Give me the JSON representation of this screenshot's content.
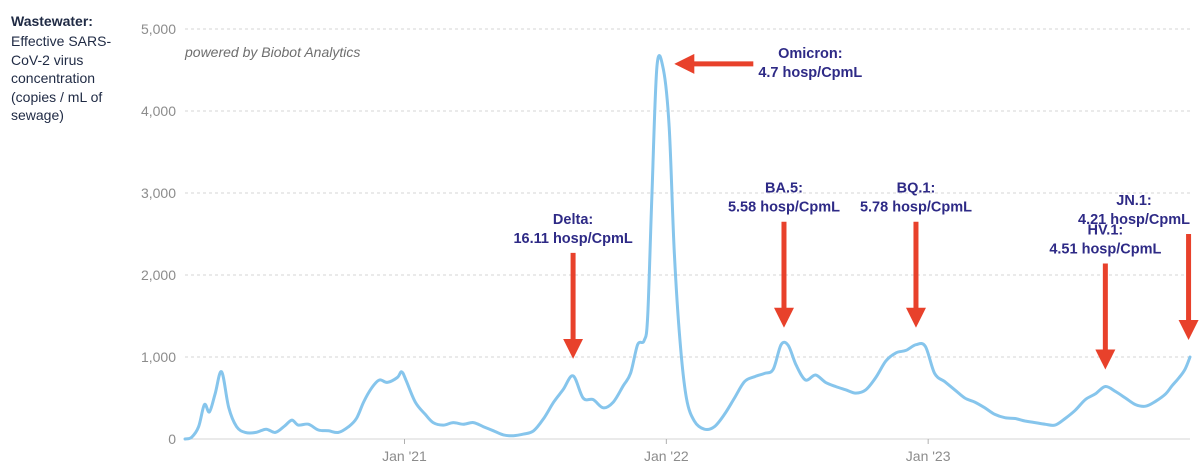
{
  "ylabel": {
    "title": "Wastewater:",
    "subtitle": "Effective SARS-CoV-2 virus concentration (copies / mL of sewage)"
  },
  "credit": "powered by Biobot Analytics",
  "colors": {
    "line": "#86c5ec",
    "arrow": "#e8412b",
    "annotation": "#2e2a86",
    "grid": "#d6d6d6"
  },
  "chart_data": {
    "type": "line",
    "ylim": [
      0,
      5000
    ],
    "xlim": [
      "2020-03-01",
      "2024-01-01"
    ],
    "grid": true,
    "yticks": [
      0,
      1000,
      2000,
      3000,
      4000,
      5000
    ],
    "ytick_labels": [
      "0",
      "1,000",
      "2,000",
      "3,000",
      "4,000",
      "5,000"
    ],
    "xticks": [
      {
        "date": "2021-01-01",
        "label": "Jan '21"
      },
      {
        "date": "2022-01-01",
        "label": "Jan '22"
      },
      {
        "date": "2023-01-01",
        "label": "Jan '23"
      }
    ],
    "series": [
      {
        "points": [
          [
            "2020-03-01",
            0
          ],
          [
            "2020-03-10",
            20
          ],
          [
            "2020-03-20",
            150
          ],
          [
            "2020-03-28",
            420
          ],
          [
            "2020-04-04",
            330
          ],
          [
            "2020-04-12",
            550
          ],
          [
            "2020-04-21",
            820
          ],
          [
            "2020-05-01",
            380
          ],
          [
            "2020-05-12",
            150
          ],
          [
            "2020-05-24",
            80
          ],
          [
            "2020-06-08",
            80
          ],
          [
            "2020-06-22",
            120
          ],
          [
            "2020-07-05",
            80
          ],
          [
            "2020-07-18",
            160
          ],
          [
            "2020-07-28",
            230
          ],
          [
            "2020-08-06",
            170
          ],
          [
            "2020-08-20",
            180
          ],
          [
            "2020-09-03",
            110
          ],
          [
            "2020-09-17",
            100
          ],
          [
            "2020-10-01",
            80
          ],
          [
            "2020-10-15",
            150
          ],
          [
            "2020-10-26",
            250
          ],
          [
            "2020-11-05",
            450
          ],
          [
            "2020-11-16",
            620
          ],
          [
            "2020-11-27",
            720
          ],
          [
            "2020-12-08",
            690
          ],
          [
            "2020-12-22",
            750
          ],
          [
            "2020-12-28",
            820
          ],
          [
            "2021-01-03",
            720
          ],
          [
            "2021-01-16",
            450
          ],
          [
            "2021-01-30",
            300
          ],
          [
            "2021-02-10",
            200
          ],
          [
            "2021-02-24",
            170
          ],
          [
            "2021-03-10",
            200
          ],
          [
            "2021-03-24",
            180
          ],
          [
            "2021-04-07",
            200
          ],
          [
            "2021-04-21",
            150
          ],
          [
            "2021-05-05",
            100
          ],
          [
            "2021-05-19",
            50
          ],
          [
            "2021-06-02",
            40
          ],
          [
            "2021-06-16",
            60
          ],
          [
            "2021-06-30",
            100
          ],
          [
            "2021-07-14",
            250
          ],
          [
            "2021-07-28",
            450
          ],
          [
            "2021-08-10",
            600
          ],
          [
            "2021-08-24",
            770
          ],
          [
            "2021-09-07",
            500
          ],
          [
            "2021-09-21",
            480
          ],
          [
            "2021-10-05",
            380
          ],
          [
            "2021-10-19",
            450
          ],
          [
            "2021-11-02",
            650
          ],
          [
            "2021-11-12",
            800
          ],
          [
            "2021-11-22",
            1150
          ],
          [
            "2021-12-01",
            1200
          ],
          [
            "2021-12-06",
            1500
          ],
          [
            "2021-12-12",
            3000
          ],
          [
            "2021-12-19",
            4550
          ],
          [
            "2021-12-28",
            4500
          ],
          [
            "2022-01-05",
            3800
          ],
          [
            "2022-01-12",
            2300
          ],
          [
            "2022-01-20",
            1200
          ],
          [
            "2022-01-29",
            500
          ],
          [
            "2022-02-09",
            220
          ],
          [
            "2022-02-23",
            120
          ],
          [
            "2022-03-09",
            150
          ],
          [
            "2022-03-23",
            300
          ],
          [
            "2022-04-06",
            500
          ],
          [
            "2022-04-20",
            700
          ],
          [
            "2022-05-04",
            760
          ],
          [
            "2022-05-18",
            800
          ],
          [
            "2022-05-30",
            850
          ],
          [
            "2022-06-10",
            1150
          ],
          [
            "2022-06-20",
            1140
          ],
          [
            "2022-07-01",
            900
          ],
          [
            "2022-07-14",
            720
          ],
          [
            "2022-07-28",
            780
          ],
          [
            "2022-08-11",
            690
          ],
          [
            "2022-08-25",
            640
          ],
          [
            "2022-09-08",
            600
          ],
          [
            "2022-09-22",
            560
          ],
          [
            "2022-10-06",
            600
          ],
          [
            "2022-10-20",
            750
          ],
          [
            "2022-11-03",
            950
          ],
          [
            "2022-11-17",
            1050
          ],
          [
            "2022-12-01",
            1080
          ],
          [
            "2022-12-15",
            1150
          ],
          [
            "2022-12-28",
            1130
          ],
          [
            "2023-01-10",
            800
          ],
          [
            "2023-01-24",
            700
          ],
          [
            "2023-02-07",
            600
          ],
          [
            "2023-02-21",
            500
          ],
          [
            "2023-03-07",
            450
          ],
          [
            "2023-03-21",
            380
          ],
          [
            "2023-04-04",
            300
          ],
          [
            "2023-04-18",
            260
          ],
          [
            "2023-05-02",
            250
          ],
          [
            "2023-05-16",
            220
          ],
          [
            "2023-05-30",
            200
          ],
          [
            "2023-06-13",
            180
          ],
          [
            "2023-06-27",
            170
          ],
          [
            "2023-07-11",
            250
          ],
          [
            "2023-07-25",
            350
          ],
          [
            "2023-08-08",
            480
          ],
          [
            "2023-08-22",
            550
          ],
          [
            "2023-09-05",
            640
          ],
          [
            "2023-09-19",
            580
          ],
          [
            "2023-10-03",
            500
          ],
          [
            "2023-10-17",
            420
          ],
          [
            "2023-10-31",
            400
          ],
          [
            "2023-11-14",
            460
          ],
          [
            "2023-11-28",
            550
          ],
          [
            "2023-12-07",
            650
          ],
          [
            "2023-12-17",
            750
          ],
          [
            "2023-12-25",
            850
          ],
          [
            "2024-01-01",
            1000
          ]
        ]
      }
    ],
    "annotations": [
      {
        "lines": [
          "Delta:",
          "16.11 hosp/CpmL"
        ],
        "date": "2021-08-24",
        "value": 770,
        "direction": "down"
      },
      {
        "lines": [
          "Omicron:",
          "4.7 hosp/CpmL"
        ],
        "date": "2021-12-25",
        "value": 4550,
        "direction": "left"
      },
      {
        "lines": [
          "BA.5:",
          "5.58 hosp/CpmL"
        ],
        "date": "2022-06-14",
        "value": 1150,
        "direction": "down"
      },
      {
        "lines": [
          "BQ.1:",
          "5.78 hosp/CpmL"
        ],
        "date": "2022-12-15",
        "value": 1150,
        "direction": "down"
      },
      {
        "lines": [
          "HV.1:",
          "4.51 hosp/CpmL"
        ],
        "date": "2023-09-05",
        "value": 640,
        "direction": "down"
      },
      {
        "lines": [
          "JN.1:",
          "4.21 hosp/CpmL"
        ],
        "date": "2023-12-30",
        "value": 1000,
        "direction": "down"
      }
    ]
  }
}
